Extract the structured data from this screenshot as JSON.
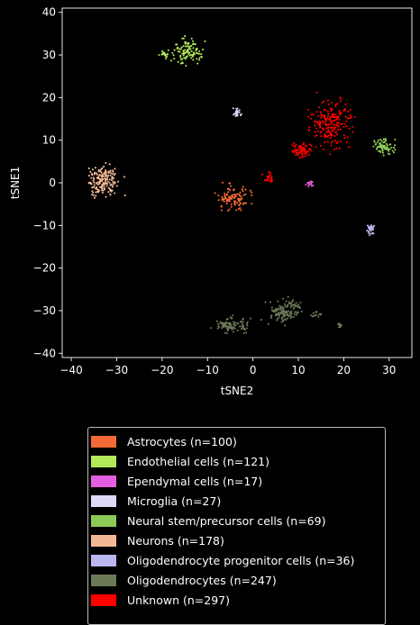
{
  "chart_data": {
    "type": "scatter",
    "title": "",
    "xlabel": "tSNE2",
    "ylabel": "tSNE1",
    "xlim": [
      -42,
      35
    ],
    "ylim": [
      -41,
      41
    ],
    "xticks": [
      -40,
      -30,
      -20,
      -10,
      0,
      10,
      20,
      30
    ],
    "yticks": [
      -40,
      -30,
      -20,
      -10,
      0,
      10,
      20,
      30,
      40
    ],
    "grid": false,
    "legend_position": "below plot",
    "series": [
      {
        "name": "Astrocytes (n=100)",
        "color": "#f26b36",
        "clusters": [
          {
            "center": [
              -4.5,
              -3.5
            ],
            "spread": [
              3.0,
              2.5
            ],
            "count": 100
          }
        ]
      },
      {
        "name": "Endothelial cells (n=121)",
        "color": "#b2e85a",
        "clusters": [
          {
            "center": [
              -14.5,
              31
            ],
            "spread": [
              3.0,
              2.5
            ],
            "count": 105
          },
          {
            "center": [
              -19.5,
              30
            ],
            "spread": [
              0.8,
              0.8
            ],
            "count": 16
          }
        ]
      },
      {
        "name": "Ependymal cells (n=17)",
        "color": "#e35ee0",
        "clusters": [
          {
            "center": [
              12.5,
              -0.3
            ],
            "spread": [
              0.8,
              0.6
            ],
            "count": 17
          }
        ]
      },
      {
        "name": "Microglia (n=27)",
        "color": "#ddd9f7",
        "clusters": [
          {
            "center": [
              -3.5,
              16.5
            ],
            "spread": [
              0.8,
              0.8
            ],
            "count": 27
          }
        ]
      },
      {
        "name": "Neural stem/precursor cells (n=69)",
        "color": "#8dc956",
        "clusters": [
          {
            "center": [
              29,
              8.5
            ],
            "spread": [
              2.0,
              1.5
            ],
            "count": 69
          }
        ]
      },
      {
        "name": "Neurons (n=178)",
        "color": "#f2b894",
        "clusters": [
          {
            "center": [
              -33,
              0.5
            ],
            "spread": [
              3.2,
              3.0
            ],
            "count": 178
          }
        ]
      },
      {
        "name": "Oligodendrocyte progenitor cells (n=36)",
        "color": "#b9b7ef",
        "clusters": [
          {
            "center": [
              26,
              -11
            ],
            "spread": [
              0.8,
              1.0
            ],
            "count": 36
          }
        ]
      },
      {
        "name": "Oligodendrocytes (n=247)",
        "color": "#6c7a57",
        "clusters": [
          {
            "center": [
              7,
              -30
            ],
            "spread": [
              3.5,
              2.5
            ],
            "count": 130
          },
          {
            "center": [
              -5,
              -33.5
            ],
            "spread": [
              3.5,
              1.7
            ],
            "count": 95
          },
          {
            "center": [
              14,
              -31
            ],
            "spread": [
              1.5,
              0.8
            ],
            "count": 12
          },
          {
            "center": [
              19,
              -33.5
            ],
            "spread": [
              0.6,
              0.4
            ],
            "count": 10
          }
        ]
      },
      {
        "name": "Unknown (n=297)",
        "color": "#ff0000",
        "clusters": [
          {
            "center": [
              17,
              14
            ],
            "spread": [
              4.0,
              5.0
            ],
            "count": 200
          },
          {
            "center": [
              10.5,
              7.5
            ],
            "spread": [
              2.0,
              1.5
            ],
            "count": 72
          },
          {
            "center": [
              3.5,
              1.0
            ],
            "spread": [
              1.0,
              1.0
            ],
            "count": 25
          }
        ]
      }
    ]
  }
}
